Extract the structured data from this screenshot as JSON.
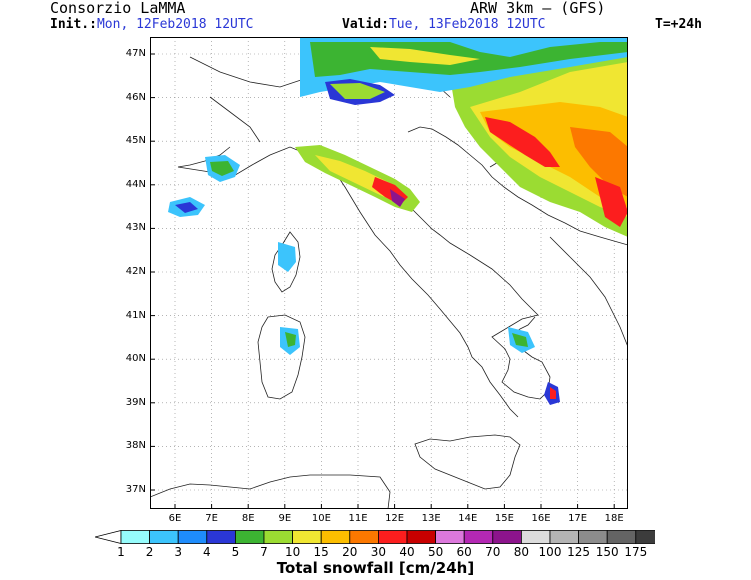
{
  "header": {
    "org": "Consorzio LaMMA",
    "model": "ARW 3km – (GFS)",
    "init_label": "Init.:",
    "init_value": "Mon, 12Feb2018 12UTC",
    "valid_label": "Valid:",
    "valid_value": "Tue, 13Feb2018 12UTC",
    "lead": "T=+24h"
  },
  "axes": {
    "lat_labels": [
      "47N",
      "46N",
      "45N",
      "44N",
      "43N",
      "42N",
      "41N",
      "40N",
      "39N",
      "38N",
      "37N"
    ],
    "lon_labels": [
      "6E",
      "7E",
      "8E",
      "9E",
      "10E",
      "11E",
      "12E",
      "13E",
      "14E",
      "15E",
      "16E",
      "17E",
      "18E"
    ]
  },
  "colorbar": {
    "title": "Total snowfall [cm/24h]",
    "labels": [
      "1",
      "2",
      "3",
      "4",
      "5",
      "7",
      "10",
      "15",
      "20",
      "30",
      "40",
      "50",
      "60",
      "70",
      "80",
      "100",
      "125",
      "150",
      "175"
    ],
    "colors": [
      "#96fcfc",
      "#3cc4fc",
      "#1e8cfc",
      "#2a37d6",
      "#3cb432",
      "#9bdc32",
      "#f0e632",
      "#fcbe00",
      "#fc7800",
      "#fc1e1e",
      "#c80000",
      "#dc78dc",
      "#b428b4",
      "#8c148c",
      "#dcdcdc",
      "#b4b4b4",
      "#8c8c8c",
      "#646464",
      "#3c3c3c"
    ]
  }
}
